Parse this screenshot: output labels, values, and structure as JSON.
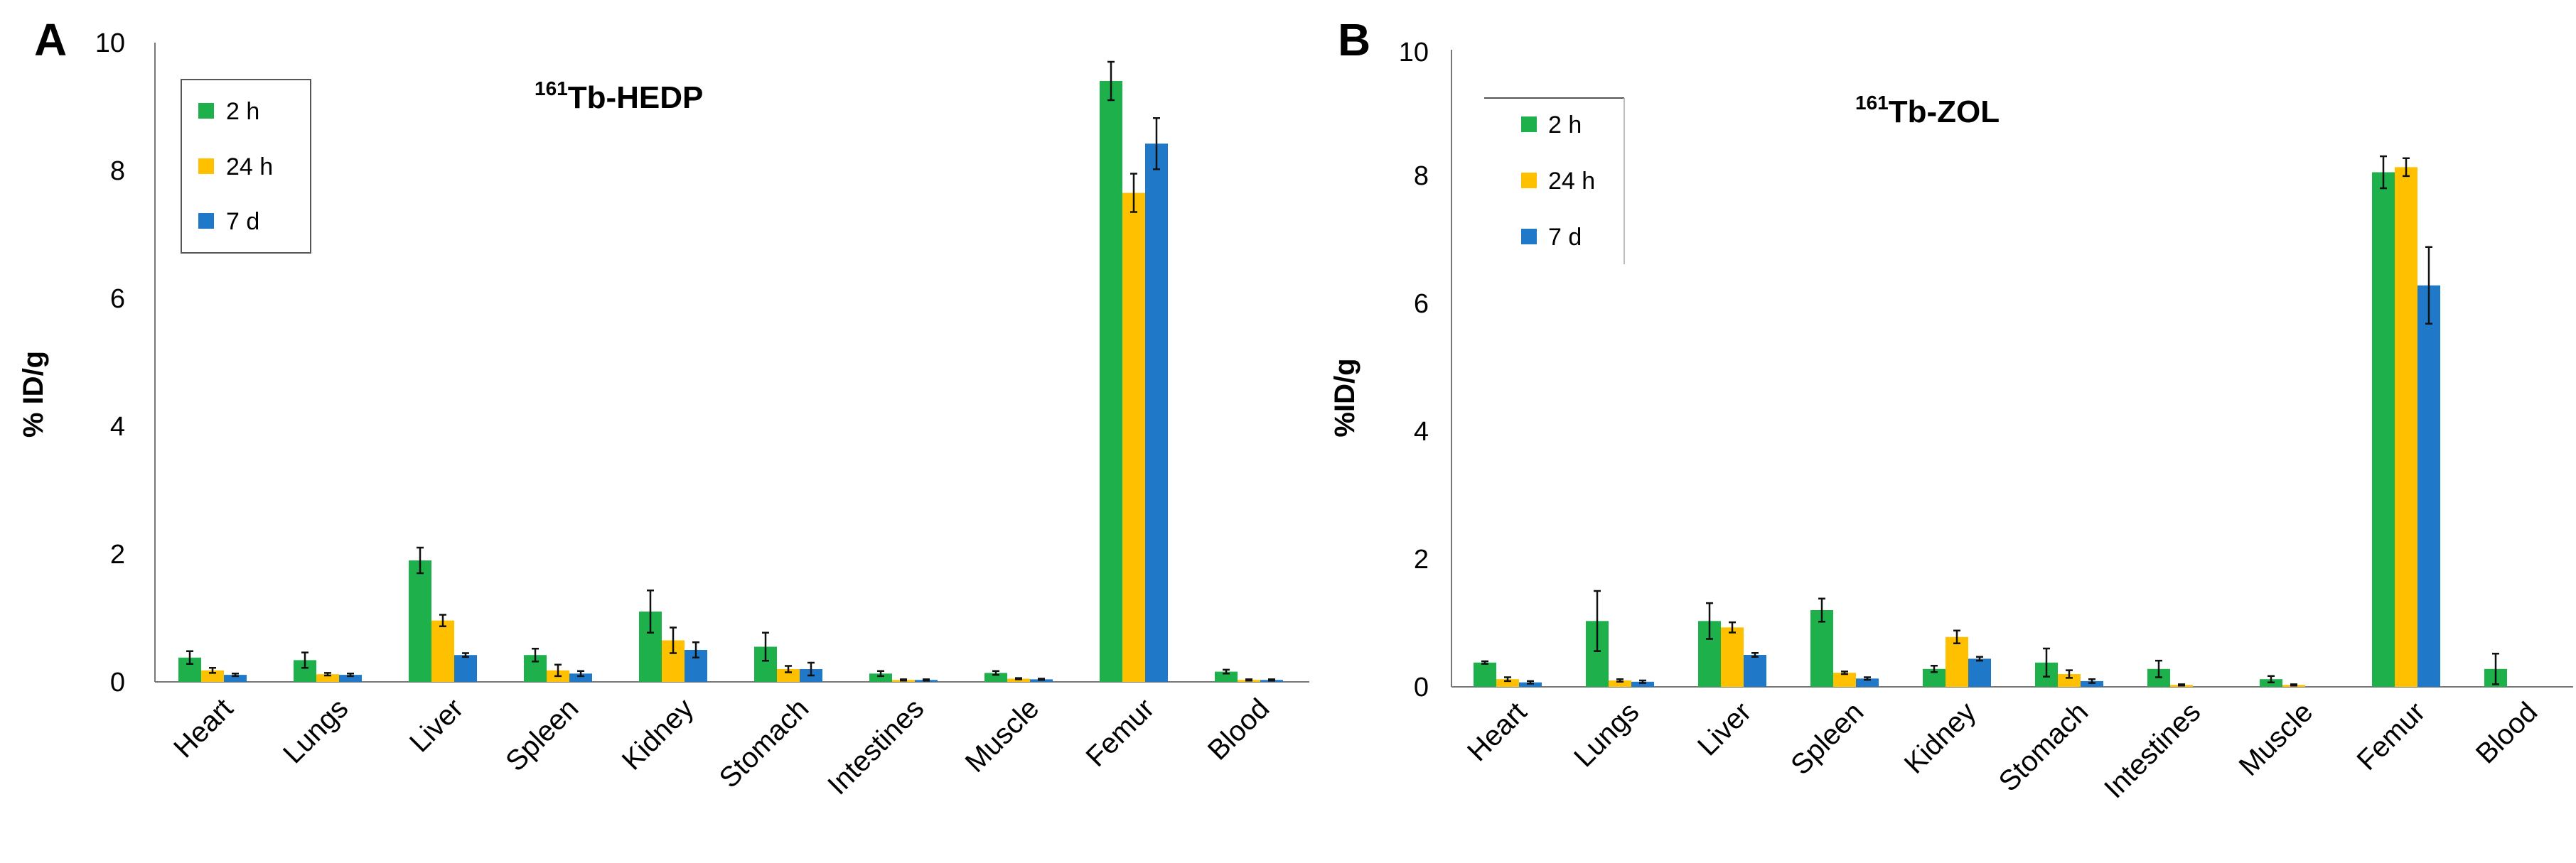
{
  "colors": {
    "2 h": "#1db04b",
    "24 h": "#ffc000",
    "7 d": "#1f78c8"
  },
  "chart_data": [
    {
      "panel": "A",
      "type": "bar",
      "title_sup": "161",
      "title_main": "Tb-HEDP",
      "ylabel": "% ID/g",
      "ylim": [
        0,
        10
      ],
      "yticks": [
        "0",
        "2",
        "4",
        "6",
        "8",
        "10"
      ],
      "categories": [
        "Heart",
        "Lungs",
        "Liver",
        "Spleen",
        "Kidney",
        "Stomach",
        "Intestines",
        "Muscle",
        "Femur",
        "Blood"
      ],
      "series": [
        {
          "name": "2 h",
          "color": "#1db04b",
          "values": [
            0.38,
            0.34,
            1.9,
            0.42,
            1.1,
            0.55,
            0.13,
            0.14,
            9.4,
            0.16
          ],
          "errors": [
            0.1,
            0.12,
            0.2,
            0.1,
            0.33,
            0.22,
            0.04,
            0.03,
            0.3,
            0.03
          ]
        },
        {
          "name": "24 h",
          "color": "#ffc000",
          "values": [
            0.18,
            0.12,
            0.96,
            0.18,
            0.65,
            0.2,
            0.03,
            0.05,
            7.65,
            0.03
          ],
          "errors": [
            0.04,
            0.02,
            0.09,
            0.09,
            0.2,
            0.05,
            0.01,
            0.01,
            0.3,
            0.01
          ]
        },
        {
          "name": "7 d",
          "color": "#1f78c8",
          "values": [
            0.11,
            0.11,
            0.42,
            0.13,
            0.5,
            0.2,
            0.03,
            0.04,
            8.42,
            0.03
          ],
          "errors": [
            0.02,
            0.02,
            0.03,
            0.04,
            0.12,
            0.1,
            0.01,
            0.01,
            0.4,
            0.01
          ]
        }
      ]
    },
    {
      "panel": "B",
      "type": "bar",
      "title_sup": "161",
      "title_main": "Tb-ZOL",
      "ylabel": "%ID/g",
      "ylim": [
        0,
        10
      ],
      "yticks": [
        "0",
        "2",
        "4",
        "6",
        "8",
        "10"
      ],
      "categories": [
        "Heart",
        "Lungs",
        "Liver",
        "Spleen",
        "Kidney",
        "Stomach",
        "Intestines",
        "Muscle",
        "Femur",
        "Blood"
      ],
      "series": [
        {
          "name": "2 h",
          "color": "#1db04b",
          "values": [
            0.38,
            1.03,
            1.03,
            1.2,
            0.28,
            0.38,
            0.28,
            0.12,
            8.05,
            0.28
          ],
          "errors": [
            0.02,
            0.47,
            0.28,
            0.18,
            0.05,
            0.22,
            0.13,
            0.05,
            0.25,
            0.24
          ]
        },
        {
          "name": "24 h",
          "color": "#ffc000",
          "values": [
            0.12,
            0.1,
            0.93,
            0.22,
            0.78,
            0.2,
            0.03,
            0.03,
            8.13,
            0.0
          ],
          "errors": [
            0.03,
            0.02,
            0.08,
            0.02,
            0.1,
            0.06,
            0.01,
            0.01,
            0.14,
            0.0
          ]
        },
        {
          "name": "7 d",
          "color": "#1f78c8",
          "values": [
            0.07,
            0.08,
            0.5,
            0.13,
            0.44,
            0.09,
            0.0,
            0.0,
            6.28,
            0.0
          ],
          "errors": [
            0.02,
            0.02,
            0.03,
            0.02,
            0.03,
            0.03,
            0.0,
            0.0,
            0.6,
            0.0
          ]
        }
      ]
    }
  ]
}
